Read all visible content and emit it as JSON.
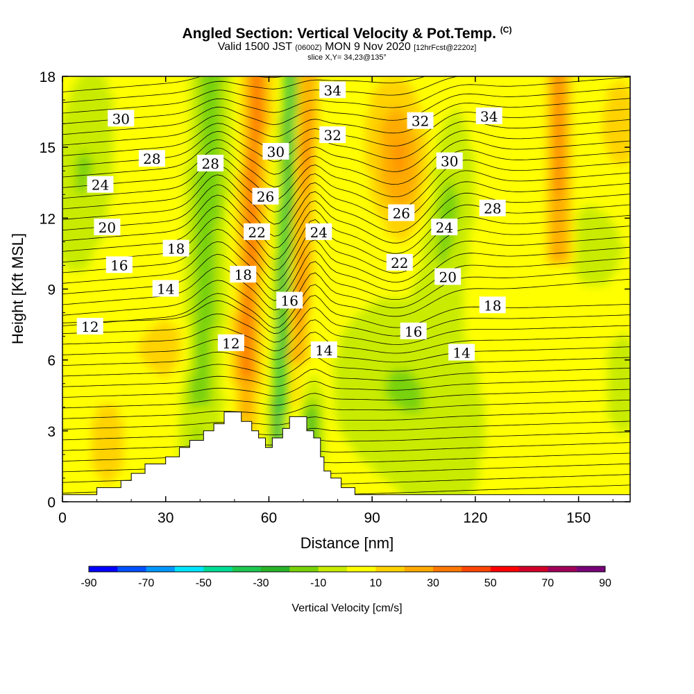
{
  "header": {
    "title": "Angled Section: Vertical Velocity & Pot.Temp.",
    "title_mark": "(C)",
    "valid_prefix": "Valid 1500 JST",
    "valid_z": "(0600Z)",
    "valid_date": "MON 9 Nov 2020",
    "valid_fcst": "[12hrFcst@2220z]",
    "slice": "slice X,Y= 34,23@135°"
  },
  "chart_data": {
    "type": "heatmap",
    "title": "Angled Section: Vertical Velocity & Pot.Temp.",
    "xlabel": "Distance [nm]",
    "ylabel": "Height [Kft MSL]",
    "xlim": [
      0,
      165
    ],
    "ylim": [
      0,
      18
    ],
    "x_ticks": [
      0,
      30,
      60,
      90,
      120,
      150
    ],
    "y_ticks": [
      0,
      3,
      6,
      9,
      12,
      15,
      18
    ],
    "colorbar": {
      "title": "Vertical Velocity [cm/s]",
      "levels": [
        -90,
        -80,
        -70,
        -60,
        -50,
        -40,
        -30,
        -20,
        -10,
        0,
        10,
        20,
        30,
        40,
        50,
        60,
        70,
        80,
        90
      ],
      "labels": [
        "-90",
        "-70",
        "-50",
        "-30",
        "-10",
        "10",
        "30",
        "50",
        "70",
        "90"
      ],
      "colors": [
        "#0000ff",
        "#0050ff",
        "#0096ff",
        "#00e6ff",
        "#00dc96",
        "#1ec850",
        "#28b428",
        "#78d20a",
        "#c8eb00",
        "#ffff00",
        "#ffd200",
        "#ffaa00",
        "#ff7800",
        "#ff4600",
        "#ff0000",
        "#d20028",
        "#a0005a",
        "#780078"
      ]
    },
    "theta_labels": [
      {
        "text": "30",
        "x": 17,
        "y": 16.2
      },
      {
        "text": "28",
        "x": 26,
        "y": 14.5
      },
      {
        "text": "24",
        "x": 11,
        "y": 13.4
      },
      {
        "text": "20",
        "x": 13,
        "y": 11.6
      },
      {
        "text": "16",
        "x": 16.5,
        "y": 10.0
      },
      {
        "text": "12",
        "x": 8,
        "y": 7.4
      },
      {
        "text": "18",
        "x": 33,
        "y": 10.7
      },
      {
        "text": "14",
        "x": 30,
        "y": 9.0
      },
      {
        "text": "28",
        "x": 43,
        "y": 14.3
      },
      {
        "text": "12",
        "x": 49,
        "y": 6.7
      },
      {
        "text": "30",
        "x": 62,
        "y": 14.8
      },
      {
        "text": "26",
        "x": 59,
        "y": 12.9
      },
      {
        "text": "22",
        "x": 56.5,
        "y": 11.4
      },
      {
        "text": "18",
        "x": 52.5,
        "y": 9.6
      },
      {
        "text": "16",
        "x": 66,
        "y": 8.5
      },
      {
        "text": "34",
        "x": 78.5,
        "y": 17.4
      },
      {
        "text": "32",
        "x": 78.5,
        "y": 15.5
      },
      {
        "text": "24",
        "x": 74.5,
        "y": 11.4
      },
      {
        "text": "14",
        "x": 76,
        "y": 6.4
      },
      {
        "text": "32",
        "x": 104,
        "y": 16.1
      },
      {
        "text": "34",
        "x": 124,
        "y": 16.3
      },
      {
        "text": "30",
        "x": 112.5,
        "y": 14.4
      },
      {
        "text": "28",
        "x": 125,
        "y": 12.4
      },
      {
        "text": "26",
        "x": 98.5,
        "y": 12.2
      },
      {
        "text": "24",
        "x": 111,
        "y": 11.6
      },
      {
        "text": "22",
        "x": 98,
        "y": 10.1
      },
      {
        "text": "20",
        "x": 112,
        "y": 9.5
      },
      {
        "text": "18",
        "x": 125,
        "y": 8.3
      },
      {
        "text": "16",
        "x": 102,
        "y": 7.2
      },
      {
        "text": "14",
        "x": 116,
        "y": 6.3
      }
    ],
    "terrain_x": [
      0,
      10,
      10,
      17,
      17,
      20,
      20,
      24,
      24,
      30,
      30,
      34,
      34,
      37,
      37,
      41,
      41,
      44,
      44,
      47,
      47,
      52,
      52,
      55,
      55,
      57,
      57,
      59,
      59,
      61,
      61,
      64,
      64,
      66,
      66,
      71,
      71,
      73,
      73,
      75,
      75,
      76,
      76,
      78,
      78,
      81,
      81,
      85,
      85,
      89,
      89,
      165
    ],
    "terrain_y": [
      0.3,
      0.3,
      0.6,
      0.6,
      0.9,
      0.9,
      1.2,
      1.2,
      1.6,
      1.6,
      1.9,
      1.9,
      2.3,
      2.3,
      2.6,
      2.6,
      3.0,
      3.0,
      3.3,
      3.3,
      3.8,
      3.8,
      3.4,
      3.4,
      3.0,
      3.0,
      2.7,
      2.7,
      2.3,
      2.3,
      2.7,
      2.7,
      3.1,
      3.1,
      3.6,
      3.6,
      3.0,
      3.0,
      2.7,
      2.7,
      1.9,
      1.9,
      1.3,
      1.3,
      1.0,
      1.0,
      0.6,
      0.6,
      0.3,
      0.3,
      0.3,
      0.3
    ]
  }
}
